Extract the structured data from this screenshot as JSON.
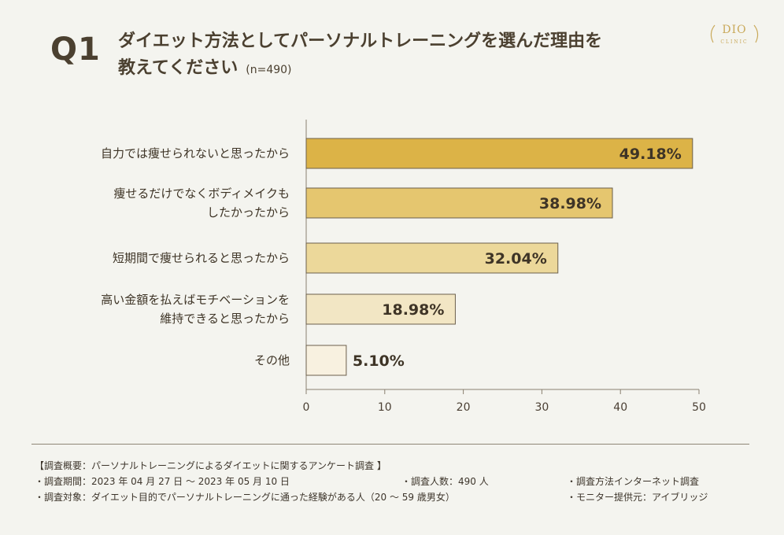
{
  "header": {
    "q_label": "Q1",
    "title_line1": "ダイエット方法としてパーソナルトレーニングを選んだ理由を",
    "title_line2": "教えてください",
    "sample_size": "(n=490)"
  },
  "logo": {
    "main": "DIO",
    "sub": "CLINIC"
  },
  "chart_data": {
    "type": "bar",
    "orientation": "horizontal",
    "categories": [
      [
        "自力では痩せられないと思ったから"
      ],
      [
        "痩せるだけでなくボディメイクも",
        "したかったから"
      ],
      [
        "短期間で痩せられると思ったから"
      ],
      [
        "高い金額を払えばモチベーションを",
        "維持できると思ったから"
      ],
      [
        "その他"
      ]
    ],
    "values": [
      49.18,
      38.98,
      32.04,
      18.98,
      5.1
    ],
    "value_labels": [
      "49.18%",
      "38.98%",
      "32.04%",
      "18.98%",
      "5.10%"
    ],
    "bar_colors": [
      "#dcb347",
      "#e5c66f",
      "#ecd89a",
      "#f2e6c4",
      "#f8f1e0"
    ],
    "xlim": [
      0,
      50
    ],
    "xticks": [
      0,
      10,
      20,
      30,
      40,
      50
    ],
    "grid": false
  },
  "footer": {
    "heading": "【調査概要：パーソナルトレーニングによるダイエットに関するアンケート調査 】",
    "period": "・調査期間：2023 年 04 月 27 日 ～ 2023 年 05 月 10 日",
    "respondents": "・調査人数：490 人",
    "method": "・調査方法インターネット調査",
    "target": "・調査対象：ダイエット目的でパーソナルトレーニングに通った経験がある人（20 ～ 59 歳男女）",
    "provider": "・モニター提供元：アイブリッジ"
  }
}
